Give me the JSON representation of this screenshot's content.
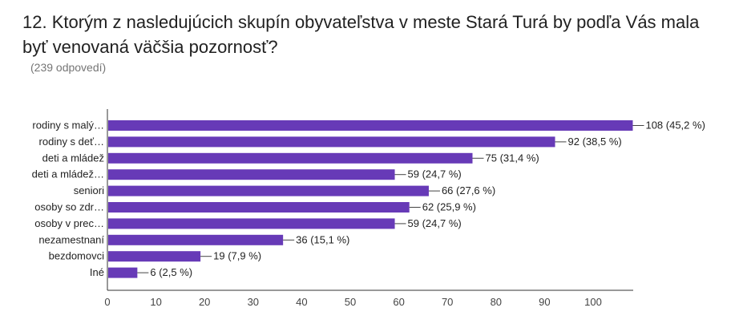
{
  "question": {
    "title": "12. Ktorým z nasledujúcich skupín obyvateľstva v meste Stará Turá by podľa Vás mala byť venovaná väčšia pozornosť?",
    "responses": "(239 odpovedí)"
  },
  "chart_data": {
    "type": "bar",
    "orientation": "horizontal",
    "categories": [
      "rodiny s malý…",
      "rodiny s deť…",
      "deti a mládež",
      "deti a mládež…",
      "seniori",
      "osoby so zdr…",
      "osoby v prec…",
      "nezamestnaní",
      "bezdomovci",
      "Iné"
    ],
    "values": [
      108,
      92,
      75,
      59,
      66,
      62,
      59,
      36,
      19,
      6
    ],
    "data_labels": [
      "108 (45,2 %)",
      "92 (38,5 %)",
      "75 (31,4 %)",
      "59 (24,7 %)",
      "66 (27,6 %)",
      "62 (25,9 %)",
      "59 (24,7 %)",
      "36 (15,1 %)",
      "19 (7,9 %)",
      "6 (2,5 %)"
    ],
    "xticks": [
      0,
      10,
      20,
      30,
      40,
      50,
      60,
      70,
      80,
      90,
      100
    ],
    "xlim": [
      0,
      108
    ],
    "bar_color": "#673ab7",
    "grid": false,
    "legend": "none"
  }
}
